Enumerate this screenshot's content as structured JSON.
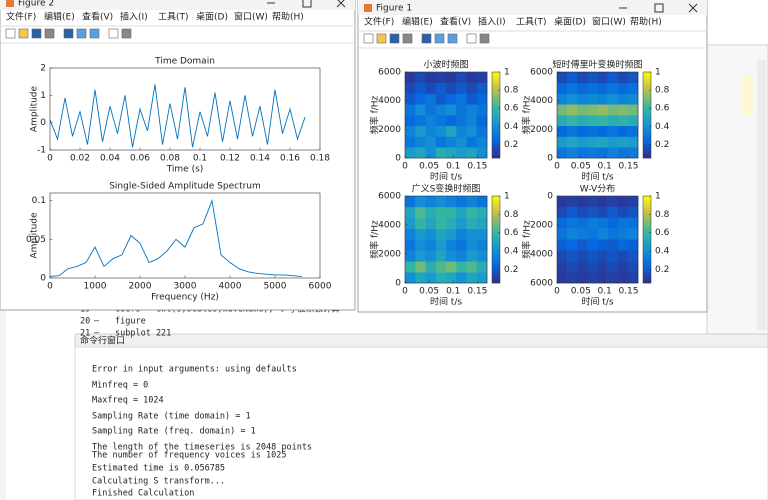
{
  "menu": [
    "文件(F)",
    "编辑(E)",
    "查看(V)",
    "插入(I)",
    "工具(T)",
    "桌面(D)",
    "窗口(W)",
    "帮助(H)"
  ],
  "figure2": {
    "title": "Figure 2"
  },
  "figure1": {
    "title": "Figure 1"
  },
  "editor": {
    "lines": [
      {
        "number": "19",
        "code": "coefs = cwt(s,scales,waveName); % 小波系数计算"
      },
      {
        "number": "20",
        "code": "figure"
      },
      {
        "number": "21",
        "code": "subplot 221"
      }
    ]
  },
  "command_window": {
    "title": "命令行窗口",
    "lines": [
      "Error in input arguments: using defaults",
      "Minfreq = 0",
      "Maxfreq = 1024",
      "Sampling Rate (time   domain) = 1",
      "Sampling Rate (freq.  domain) = 1",
      "The length of the timeseries is 2048 points",
      "The number of frequency voices is 1025",
      "Estimated time is 0.056785",
      "Calculating S transform...",
      "Finished Calculation"
    ]
  },
  "chart_data": [
    {
      "type": "line",
      "title": "Time Domain",
      "xlabel": "Time (s)",
      "ylabel": "Amplitude",
      "color": "#0072bd",
      "x": [
        0,
        0.005,
        0.01,
        0.015,
        0.02,
        0.025,
        0.03,
        0.035,
        0.04,
        0.045,
        0.05,
        0.055,
        0.06,
        0.065,
        0.07,
        0.075,
        0.08,
        0.085,
        0.09,
        0.095,
        0.1,
        0.105,
        0.11,
        0.115,
        0.12,
        0.125,
        0.13,
        0.135,
        0.14,
        0.145,
        0.15,
        0.155,
        0.16,
        0.165,
        0.17
      ],
      "values": [
        0.1,
        -0.6,
        0.9,
        -0.5,
        0.4,
        -0.8,
        1.2,
        -0.7,
        0.6,
        -0.4,
        1.0,
        -0.9,
        0.5,
        -0.3,
        1.4,
        -0.8,
        0.7,
        -0.6,
        1.3,
        -0.9,
        0.4,
        -0.5,
        1.1,
        -0.7,
        0.8,
        -0.6,
        1.0,
        -0.5,
        0.6,
        -0.8,
        1.2,
        -0.4,
        0.5,
        -0.6,
        0.2
      ],
      "xlim": [
        0,
        0.18
      ],
      "ylim": [
        -1,
        2
      ],
      "xticks": [
        0,
        0.02,
        0.04,
        0.06,
        0.08,
        0.1,
        0.12,
        0.14,
        0.16,
        0.18
      ],
      "yticks": [
        -1,
        0,
        1,
        2
      ]
    },
    {
      "type": "line",
      "title": "Single-Sided Amplitude Spectrum",
      "xlabel": "Frequency (Hz)",
      "ylabel": "Amplitude",
      "color": "#0072bd",
      "x": [
        0,
        200,
        400,
        600,
        800,
        1000,
        1200,
        1400,
        1600,
        1800,
        2000,
        2200,
        2400,
        2600,
        2800,
        3000,
        3200,
        3400,
        3600,
        3800,
        4000,
        4200,
        4400,
        4600,
        4800,
        5000,
        5200,
        5400,
        5600
      ],
      "values": [
        0.002,
        0.003,
        0.012,
        0.015,
        0.02,
        0.04,
        0.015,
        0.025,
        0.03,
        0.055,
        0.045,
        0.02,
        0.025,
        0.035,
        0.05,
        0.04,
        0.065,
        0.07,
        0.1,
        0.03,
        0.02,
        0.012,
        0.008,
        0.006,
        0.005,
        0.004,
        0.004,
        0.003,
        0.002
      ],
      "xlim": [
        0,
        6000
      ],
      "ylim": [
        0,
        0.11
      ],
      "xticks": [
        0,
        1000,
        2000,
        3000,
        4000,
        5000,
        6000
      ],
      "yticks": [
        0,
        0.05,
        0.1
      ]
    },
    {
      "type": "heatmap",
      "title": "小波时频图",
      "xlabel": "时间 t/s",
      "ylabel": "频率 f/Hz",
      "colormap": "parula",
      "xlim": [
        0,
        0.17
      ],
      "ylim": [
        0,
        6000
      ],
      "xticks": [
        0,
        0.05,
        0.1,
        0.15
      ],
      "yticks": [
        0,
        2000,
        4000,
        6000
      ],
      "clim": [
        0.05,
        1
      ],
      "cticks": [
        0.2,
        0.4,
        0.6,
        0.8,
        1
      ],
      "values": [
        [
          0.45,
          0.5,
          0.4,
          0.55,
          0.5,
          0.45,
          0.5,
          0.4
        ],
        [
          0.3,
          0.35,
          0.4,
          0.3,
          0.35,
          0.4,
          0.3,
          0.35
        ],
        [
          0.35,
          0.45,
          0.35,
          0.4,
          0.5,
          0.35,
          0.4,
          0.3
        ],
        [
          0.25,
          0.3,
          0.35,
          0.3,
          0.25,
          0.3,
          0.35,
          0.25
        ],
        [
          0.3,
          0.4,
          0.3,
          0.35,
          0.4,
          0.3,
          0.35,
          0.3
        ],
        [
          0.2,
          0.25,
          0.3,
          0.2,
          0.25,
          0.3,
          0.2,
          0.25
        ],
        [
          0.15,
          0.2,
          0.15,
          0.2,
          0.15,
          0.2,
          0.15,
          0.2
        ],
        [
          0.1,
          0.15,
          0.1,
          0.12,
          0.1,
          0.15,
          0.1,
          0.12
        ]
      ]
    },
    {
      "type": "heatmap",
      "title": "短时傅里叶变换时频图",
      "xlabel": "时间 t/s",
      "ylabel": "频率 f/Hz",
      "colormap": "parula",
      "xlim": [
        0,
        0.17
      ],
      "ylim": [
        0,
        6000
      ],
      "xticks": [
        0,
        0.05,
        0.1,
        0.15
      ],
      "yticks": [
        0,
        2000,
        4000,
        6000
      ],
      "clim": [
        0.05,
        1
      ],
      "cticks": [
        0.2,
        0.4,
        0.6,
        0.8,
        1
      ],
      "values": [
        [
          0.3,
          0.35,
          0.3,
          0.32,
          0.3,
          0.35,
          0.3,
          0.32
        ],
        [
          0.45,
          0.5,
          0.45,
          0.48,
          0.5,
          0.45,
          0.48,
          0.45
        ],
        [
          0.25,
          0.3,
          0.25,
          0.28,
          0.25,
          0.3,
          0.25,
          0.28
        ],
        [
          0.55,
          0.6,
          0.55,
          0.58,
          0.6,
          0.55,
          0.58,
          0.55
        ],
        [
          0.7,
          0.75,
          0.7,
          0.72,
          0.75,
          0.7,
          0.72,
          0.7
        ],
        [
          0.35,
          0.4,
          0.35,
          0.38,
          0.35,
          0.4,
          0.35,
          0.38
        ],
        [
          0.25,
          0.3,
          0.25,
          0.28,
          0.25,
          0.3,
          0.25,
          0.28
        ],
        [
          0.15,
          0.2,
          0.15,
          0.18,
          0.15,
          0.2,
          0.15,
          0.18
        ]
      ]
    },
    {
      "type": "heatmap",
      "title": "广义S变换时频图",
      "xlabel": "时间 t/s",
      "ylabel": "频率 f/Hz",
      "colormap": "parula",
      "xlim": [
        0,
        0.17
      ],
      "ylim": [
        0,
        6000
      ],
      "xticks": [
        0,
        0.05,
        0.1,
        0.15
      ],
      "yticks": [
        0,
        2000,
        4000,
        6000
      ],
      "clim": [
        0.05,
        1
      ],
      "cticks": [
        0.2,
        0.4,
        0.6,
        0.8,
        1
      ],
      "values": [
        [
          0.4,
          0.5,
          0.45,
          0.55,
          0.5,
          0.4,
          0.5,
          0.45
        ],
        [
          0.6,
          0.7,
          0.55,
          0.65,
          0.7,
          0.6,
          0.65,
          0.55
        ],
        [
          0.35,
          0.45,
          0.4,
          0.5,
          0.4,
          0.35,
          0.45,
          0.4
        ],
        [
          0.3,
          0.4,
          0.35,
          0.45,
          0.35,
          0.3,
          0.4,
          0.35
        ],
        [
          0.35,
          0.45,
          0.4,
          0.5,
          0.45,
          0.35,
          0.4,
          0.4
        ],
        [
          0.45,
          0.6,
          0.5,
          0.6,
          0.55,
          0.45,
          0.55,
          0.5
        ],
        [
          0.5,
          0.65,
          0.55,
          0.6,
          0.6,
          0.5,
          0.6,
          0.55
        ],
        [
          0.3,
          0.4,
          0.35,
          0.4,
          0.35,
          0.3,
          0.35,
          0.3
        ]
      ]
    },
    {
      "type": "heatmap",
      "title": "W-V分布",
      "xlabel": "时间 t/s",
      "ylabel": "频率 f/Hz",
      "colormap": "parula",
      "y_reversed": true,
      "xlim": [
        0,
        0.17
      ],
      "ylim": [
        0,
        6000
      ],
      "xticks": [
        0,
        0.05,
        0.1,
        0.15
      ],
      "yticks": [
        0,
        2000,
        4000,
        6000
      ],
      "clim": [
        0.05,
        1
      ],
      "cticks": [
        0.2,
        0.4,
        0.6,
        0.8,
        1
      ],
      "values": [
        [
          0.1,
          0.12,
          0.1,
          0.12,
          0.1,
          0.12,
          0.1,
          0.12
        ],
        [
          0.15,
          0.2,
          0.15,
          0.18,
          0.15,
          0.2,
          0.15,
          0.18
        ],
        [
          0.25,
          0.3,
          0.28,
          0.32,
          0.3,
          0.25,
          0.3,
          0.28
        ],
        [
          0.3,
          0.35,
          0.32,
          0.3,
          0.35,
          0.3,
          0.32,
          0.35
        ],
        [
          0.22,
          0.25,
          0.2,
          0.25,
          0.22,
          0.2,
          0.25,
          0.22
        ],
        [
          0.15,
          0.18,
          0.15,
          0.18,
          0.15,
          0.18,
          0.15,
          0.18
        ],
        [
          0.12,
          0.15,
          0.12,
          0.15,
          0.12,
          0.15,
          0.12,
          0.15
        ],
        [
          0.1,
          0.12,
          0.1,
          0.12,
          0.1,
          0.12,
          0.1,
          0.12
        ]
      ]
    }
  ]
}
